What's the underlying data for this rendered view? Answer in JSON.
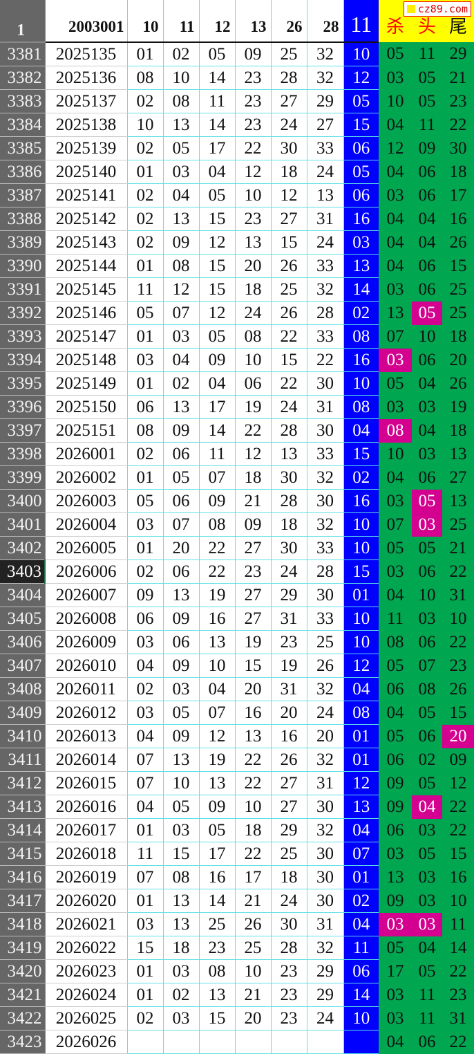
{
  "colors": {
    "row_header": "#666666",
    "blue_column": "#0000ff",
    "green_columns": "#00a650",
    "highlight": "#d4008f",
    "header_yellow": "#ffff00"
  },
  "watermark": "cz89.com",
  "header": {
    "row_number": "1",
    "issue": "2003001",
    "numbers": [
      "10",
      "11",
      "12",
      "13",
      "26",
      "28"
    ],
    "blue": "11",
    "extras": [
      "杀",
      "头",
      "尾"
    ]
  },
  "selected_row": "3403",
  "rows": [
    {
      "n": "3381",
      "issue": "2025135",
      "nums": [
        "01",
        "02",
        "05",
        "09",
        "25",
        "32"
      ],
      "blue": "10",
      "extras": [
        "05",
        "11",
        "29"
      ],
      "hl": []
    },
    {
      "n": "3382",
      "issue": "2025136",
      "nums": [
        "08",
        "10",
        "14",
        "23",
        "28",
        "32"
      ],
      "blue": "12",
      "extras": [
        "03",
        "05",
        "21"
      ],
      "hl": []
    },
    {
      "n": "3383",
      "issue": "2025137",
      "nums": [
        "02",
        "08",
        "11",
        "23",
        "27",
        "29"
      ],
      "blue": "05",
      "extras": [
        "10",
        "05",
        "23"
      ],
      "hl": []
    },
    {
      "n": "3384",
      "issue": "2025138",
      "nums": [
        "10",
        "13",
        "14",
        "23",
        "24",
        "27"
      ],
      "blue": "15",
      "extras": [
        "04",
        "11",
        "22"
      ],
      "hl": []
    },
    {
      "n": "3385",
      "issue": "2025139",
      "nums": [
        "02",
        "05",
        "17",
        "22",
        "30",
        "33"
      ],
      "blue": "06",
      "extras": [
        "12",
        "09",
        "30"
      ],
      "hl": []
    },
    {
      "n": "3386",
      "issue": "2025140",
      "nums": [
        "01",
        "03",
        "04",
        "12",
        "18",
        "24"
      ],
      "blue": "05",
      "extras": [
        "04",
        "06",
        "18"
      ],
      "hl": []
    },
    {
      "n": "3387",
      "issue": "2025141",
      "nums": [
        "02",
        "04",
        "05",
        "10",
        "12",
        "13"
      ],
      "blue": "06",
      "extras": [
        "03",
        "06",
        "17"
      ],
      "hl": []
    },
    {
      "n": "3388",
      "issue": "2025142",
      "nums": [
        "02",
        "13",
        "15",
        "23",
        "27",
        "31"
      ],
      "blue": "16",
      "extras": [
        "04",
        "04",
        "16"
      ],
      "hl": []
    },
    {
      "n": "3389",
      "issue": "2025143",
      "nums": [
        "02",
        "09",
        "12",
        "13",
        "15",
        "24"
      ],
      "blue": "03",
      "extras": [
        "04",
        "04",
        "26"
      ],
      "hl": []
    },
    {
      "n": "3390",
      "issue": "2025144",
      "nums": [
        "01",
        "08",
        "15",
        "20",
        "26",
        "33"
      ],
      "blue": "13",
      "extras": [
        "04",
        "06",
        "15"
      ],
      "hl": []
    },
    {
      "n": "3391",
      "issue": "2025145",
      "nums": [
        "11",
        "12",
        "15",
        "18",
        "25",
        "32"
      ],
      "blue": "14",
      "extras": [
        "03",
        "06",
        "25"
      ],
      "hl": []
    },
    {
      "n": "3392",
      "issue": "2025146",
      "nums": [
        "05",
        "07",
        "12",
        "24",
        "26",
        "28"
      ],
      "blue": "02",
      "extras": [
        "13",
        "05",
        "25"
      ],
      "hl": [
        1
      ]
    },
    {
      "n": "3393",
      "issue": "2025147",
      "nums": [
        "01",
        "03",
        "05",
        "08",
        "22",
        "33"
      ],
      "blue": "08",
      "extras": [
        "07",
        "10",
        "18"
      ],
      "hl": []
    },
    {
      "n": "3394",
      "issue": "2025148",
      "nums": [
        "03",
        "04",
        "09",
        "10",
        "15",
        "22"
      ],
      "blue": "16",
      "extras": [
        "03",
        "06",
        "20"
      ],
      "hl": [
        0
      ]
    },
    {
      "n": "3395",
      "issue": "2025149",
      "nums": [
        "01",
        "02",
        "04",
        "06",
        "22",
        "30"
      ],
      "blue": "10",
      "extras": [
        "05",
        "04",
        "26"
      ],
      "hl": []
    },
    {
      "n": "3396",
      "issue": "2025150",
      "nums": [
        "06",
        "13",
        "17",
        "19",
        "24",
        "31"
      ],
      "blue": "08",
      "extras": [
        "03",
        "03",
        "19"
      ],
      "hl": []
    },
    {
      "n": "3397",
      "issue": "2025151",
      "nums": [
        "08",
        "09",
        "14",
        "22",
        "28",
        "30"
      ],
      "blue": "04",
      "extras": [
        "08",
        "04",
        "18"
      ],
      "hl": [
        0
      ]
    },
    {
      "n": "3398",
      "issue": "2026001",
      "nums": [
        "02",
        "06",
        "11",
        "12",
        "13",
        "33"
      ],
      "blue": "15",
      "extras": [
        "10",
        "03",
        "13"
      ],
      "hl": []
    },
    {
      "n": "3399",
      "issue": "2026002",
      "nums": [
        "01",
        "05",
        "07",
        "18",
        "30",
        "32"
      ],
      "blue": "02",
      "extras": [
        "04",
        "06",
        "27"
      ],
      "hl": []
    },
    {
      "n": "3400",
      "issue": "2026003",
      "nums": [
        "05",
        "06",
        "09",
        "21",
        "28",
        "30"
      ],
      "blue": "16",
      "extras": [
        "03",
        "05",
        "13"
      ],
      "hl": [
        1
      ]
    },
    {
      "n": "3401",
      "issue": "2026004",
      "nums": [
        "03",
        "07",
        "08",
        "09",
        "18",
        "32"
      ],
      "blue": "10",
      "extras": [
        "07",
        "03",
        "25"
      ],
      "hl": [
        1
      ]
    },
    {
      "n": "3402",
      "issue": "2026005",
      "nums": [
        "01",
        "20",
        "22",
        "27",
        "30",
        "33"
      ],
      "blue": "10",
      "extras": [
        "05",
        "05",
        "21"
      ],
      "hl": []
    },
    {
      "n": "3403",
      "issue": "2026006",
      "nums": [
        "02",
        "06",
        "22",
        "23",
        "24",
        "28"
      ],
      "blue": "15",
      "extras": [
        "03",
        "06",
        "22"
      ],
      "hl": []
    },
    {
      "n": "3404",
      "issue": "2026007",
      "nums": [
        "09",
        "13",
        "19",
        "27",
        "29",
        "30"
      ],
      "blue": "01",
      "extras": [
        "04",
        "10",
        "31"
      ],
      "hl": []
    },
    {
      "n": "3405",
      "issue": "2026008",
      "nums": [
        "06",
        "09",
        "16",
        "27",
        "31",
        "33"
      ],
      "blue": "10",
      "extras": [
        "11",
        "03",
        "10"
      ],
      "hl": []
    },
    {
      "n": "3406",
      "issue": "2026009",
      "nums": [
        "03",
        "06",
        "13",
        "19",
        "23",
        "25"
      ],
      "blue": "10",
      "extras": [
        "08",
        "06",
        "22"
      ],
      "hl": []
    },
    {
      "n": "3407",
      "issue": "2026010",
      "nums": [
        "04",
        "09",
        "10",
        "15",
        "19",
        "26"
      ],
      "blue": "12",
      "extras": [
        "05",
        "07",
        "23"
      ],
      "hl": []
    },
    {
      "n": "3408",
      "issue": "2026011",
      "nums": [
        "02",
        "03",
        "04",
        "20",
        "31",
        "32"
      ],
      "blue": "04",
      "extras": [
        "06",
        "08",
        "26"
      ],
      "hl": []
    },
    {
      "n": "3409",
      "issue": "2026012",
      "nums": [
        "03",
        "05",
        "07",
        "16",
        "20",
        "24"
      ],
      "blue": "08",
      "extras": [
        "04",
        "05",
        "15"
      ],
      "hl": []
    },
    {
      "n": "3410",
      "issue": "2026013",
      "nums": [
        "04",
        "09",
        "12",
        "13",
        "16",
        "20"
      ],
      "blue": "01",
      "extras": [
        "05",
        "06",
        "20"
      ],
      "hl": [
        2
      ]
    },
    {
      "n": "3411",
      "issue": "2026014",
      "nums": [
        "07",
        "13",
        "19",
        "22",
        "26",
        "32"
      ],
      "blue": "01",
      "extras": [
        "06",
        "02",
        "09"
      ],
      "hl": []
    },
    {
      "n": "3412",
      "issue": "2026015",
      "nums": [
        "07",
        "10",
        "13",
        "22",
        "27",
        "31"
      ],
      "blue": "12",
      "extras": [
        "09",
        "05",
        "12"
      ],
      "hl": []
    },
    {
      "n": "3413",
      "issue": "2026016",
      "nums": [
        "04",
        "05",
        "09",
        "10",
        "27",
        "30"
      ],
      "blue": "13",
      "extras": [
        "09",
        "04",
        "22"
      ],
      "hl": [
        1
      ]
    },
    {
      "n": "3414",
      "issue": "2026017",
      "nums": [
        "01",
        "03",
        "05",
        "18",
        "29",
        "32"
      ],
      "blue": "04",
      "extras": [
        "06",
        "03",
        "22"
      ],
      "hl": []
    },
    {
      "n": "3415",
      "issue": "2026018",
      "nums": [
        "11",
        "15",
        "17",
        "22",
        "25",
        "30"
      ],
      "blue": "07",
      "extras": [
        "03",
        "05",
        "15"
      ],
      "hl": []
    },
    {
      "n": "3416",
      "issue": "2026019",
      "nums": [
        "07",
        "08",
        "16",
        "17",
        "18",
        "30"
      ],
      "blue": "01",
      "extras": [
        "13",
        "03",
        "16"
      ],
      "hl": []
    },
    {
      "n": "3417",
      "issue": "2026020",
      "nums": [
        "01",
        "13",
        "14",
        "21",
        "24",
        "30"
      ],
      "blue": "02",
      "extras": [
        "09",
        "03",
        "10"
      ],
      "hl": []
    },
    {
      "n": "3418",
      "issue": "2026021",
      "nums": [
        "03",
        "13",
        "25",
        "26",
        "30",
        "31"
      ],
      "blue": "04",
      "extras": [
        "03",
        "03",
        "11"
      ],
      "hl": [
        0,
        1
      ]
    },
    {
      "n": "3419",
      "issue": "2026022",
      "nums": [
        "15",
        "18",
        "23",
        "25",
        "28",
        "32"
      ],
      "blue": "11",
      "extras": [
        "05",
        "04",
        "14"
      ],
      "hl": []
    },
    {
      "n": "3420",
      "issue": "2026023",
      "nums": [
        "01",
        "03",
        "08",
        "10",
        "23",
        "29"
      ],
      "blue": "06",
      "extras": [
        "17",
        "05",
        "22"
      ],
      "hl": []
    },
    {
      "n": "3421",
      "issue": "2026024",
      "nums": [
        "01",
        "02",
        "13",
        "21",
        "23",
        "29"
      ],
      "blue": "14",
      "extras": [
        "03",
        "11",
        "23"
      ],
      "hl": []
    },
    {
      "n": "3422",
      "issue": "2026025",
      "nums": [
        "02",
        "03",
        "15",
        "20",
        "23",
        "24"
      ],
      "blue": "10",
      "extras": [
        "03",
        "11",
        "31"
      ],
      "hl": []
    },
    {
      "n": "3423",
      "issue": "2026026",
      "nums": [
        "",
        "",
        "",
        "",
        "",
        ""
      ],
      "blue": "",
      "extras": [
        "04",
        "06",
        "22"
      ],
      "hl": []
    }
  ]
}
